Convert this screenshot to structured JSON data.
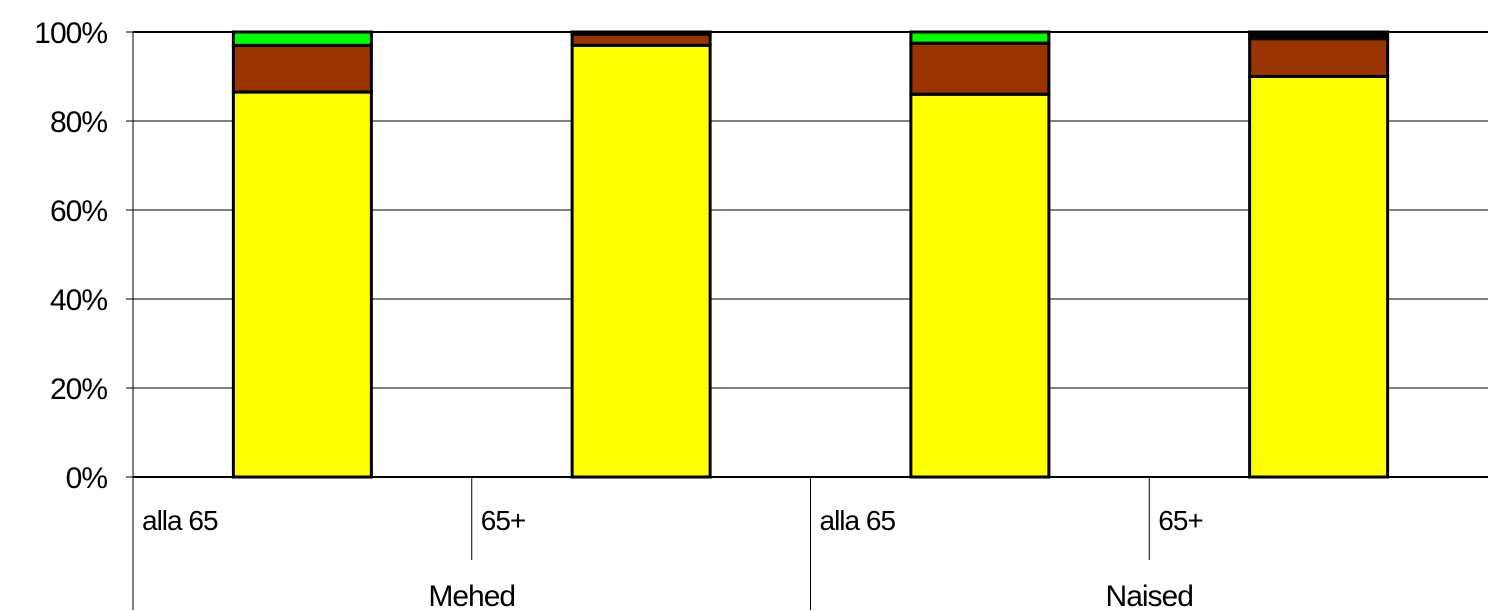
{
  "chart_data": {
    "type": "bar",
    "stacked": true,
    "title": "",
    "xlabel": "",
    "ylabel": "",
    "ylim": [
      0,
      100
    ],
    "yticks": [
      "0%",
      "20%",
      "40%",
      "60%",
      "80%",
      "100%"
    ],
    "grid": true,
    "groups": [
      {
        "label": "Mehed",
        "categories": [
          "alla 65",
          "65+"
        ]
      },
      {
        "label": "Naised",
        "categories": [
          "alla 65",
          "65+"
        ]
      }
    ],
    "categories": [
      "alla 65",
      "65+",
      "alla 65",
      "65+"
    ],
    "series": [
      {
        "color": "#ffff00",
        "values": [
          86.5,
          97,
          86,
          90
        ]
      },
      {
        "color": "#993300",
        "values": [
          10.5,
          2.5,
          11.5,
          8.5
        ]
      },
      {
        "color": "#00ff00",
        "values": [
          3,
          0,
          2.5,
          0
        ]
      },
      {
        "color": "#000000",
        "values": [
          0,
          0.5,
          0,
          1.5
        ]
      }
    ]
  }
}
